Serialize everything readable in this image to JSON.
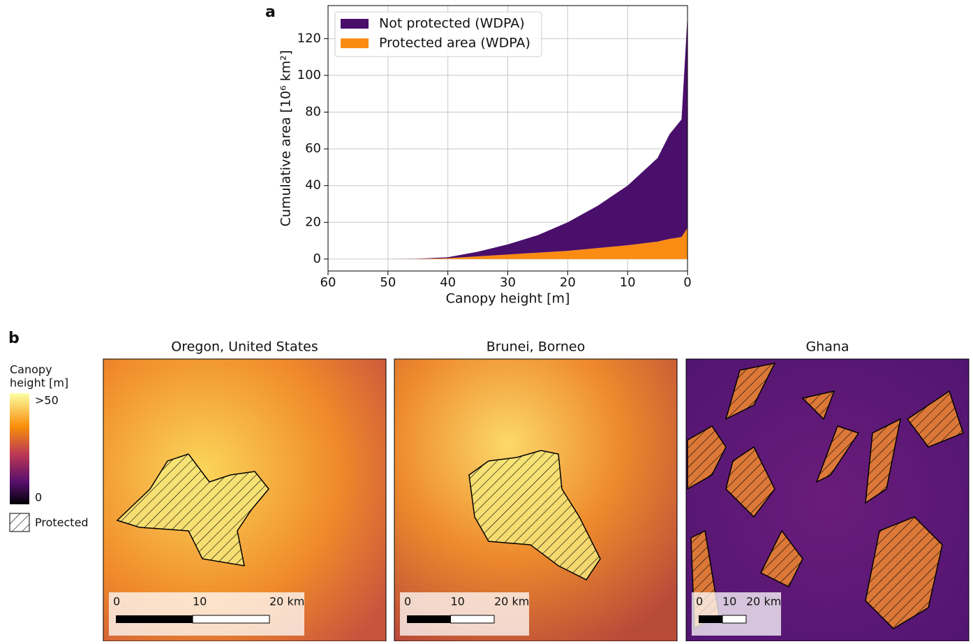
{
  "chart_data": {
    "type": "area",
    "stacked": true,
    "x": [
      60,
      50,
      45,
      40,
      35,
      30,
      25,
      20,
      15,
      10,
      5,
      3,
      1,
      0
    ],
    "series": [
      {
        "name": "Protected area (WDPA)",
        "color": "#fb8c13",
        "values": [
          0,
          0,
          0.1,
          0.5,
          1.5,
          2.5,
          3.5,
          4.5,
          6,
          7.5,
          9.5,
          11,
          12,
          17
        ]
      },
      {
        "name": "Not protected (WDPA)",
        "color": "#4a0e6b",
        "values": [
          0,
          0,
          0.1,
          0.5,
          2.5,
          5.5,
          9.5,
          15.5,
          23,
          32.5,
          45.5,
          57,
          64,
          116
        ]
      }
    ],
    "xlabel": "Canopy height [m]",
    "ylabel": "Cumulative area [10⁶ km²]",
    "xlim": [
      60,
      0
    ],
    "ylim": [
      -6.5,
      138
    ],
    "xticks": [
      60,
      50,
      40,
      30,
      20,
      10,
      0
    ],
    "yticks": [
      0,
      20,
      40,
      60,
      80,
      100,
      120
    ],
    "grid": true,
    "legend": "upper-left",
    "legend_order": [
      1,
      0
    ]
  },
  "panel_labels": [
    "a",
    "b"
  ],
  "maps": {
    "colorbar_title": [
      "Canopy",
      "height [m]"
    ],
    "colorbar_max": ">50",
    "colorbar_min": "0",
    "protected_label": "Protected",
    "panels": [
      {
        "title": "Oregon, United States",
        "scale_labels": [
          "0",
          "10",
          "20 km"
        ]
      },
      {
        "title": "Brunei, Borneo",
        "scale_labels": [
          "0",
          "10",
          "20 km"
        ]
      },
      {
        "title": "Ghana",
        "scale_labels": [
          "0",
          "10",
          "20 km"
        ]
      }
    ]
  }
}
